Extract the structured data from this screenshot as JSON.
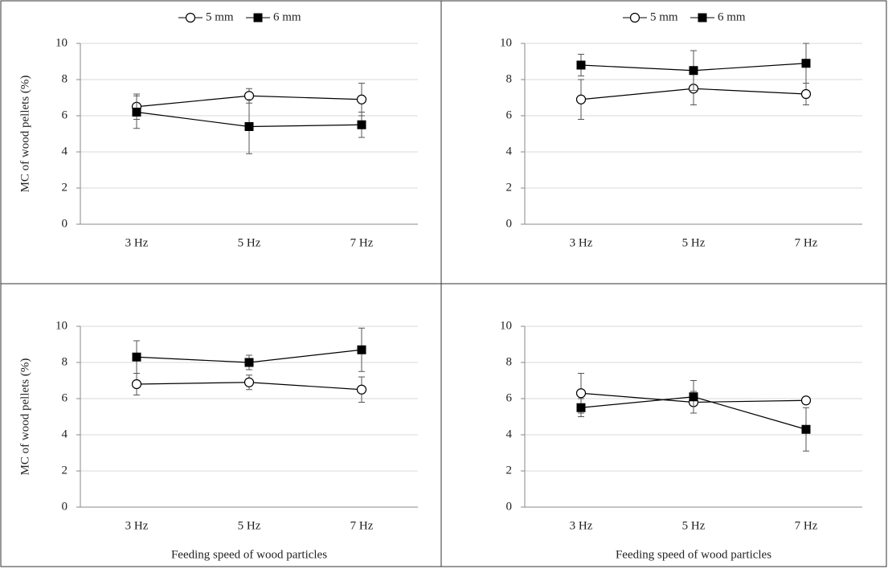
{
  "chart_data": [
    {
      "type": "line",
      "categories": [
        "3 Hz",
        "5 Hz",
        "7 Hz"
      ],
      "ylabel": "MC of wood pellets (%)",
      "ylim": [
        0,
        10
      ],
      "yticks": [
        0,
        2,
        4,
        6,
        8,
        10
      ],
      "grid": true,
      "legend": "top",
      "series": [
        {
          "name": "5 mm",
          "color": "#000000",
          "marker": "circle",
          "values": [
            6.5,
            7.1,
            6.9
          ],
          "errors": [
            0.7,
            0.4,
            0.9
          ]
        },
        {
          "name": "6 mm",
          "color": "#000000",
          "marker": "square",
          "values": [
            6.2,
            5.4,
            5.5
          ],
          "errors": [
            0.9,
            1.5,
            0.7
          ]
        }
      ]
    },
    {
      "type": "line",
      "categories": [
        "3 Hz",
        "5 Hz",
        "7 Hz"
      ],
      "ylim": [
        0,
        10
      ],
      "yticks": [
        0,
        2,
        4,
        6,
        8,
        10
      ],
      "grid": true,
      "legend": "top",
      "series": [
        {
          "name": "5 mm",
          "color": "#000000",
          "marker": "circle",
          "values": [
            6.9,
            7.5,
            7.2
          ],
          "errors": [
            1.1,
            0.9,
            0.6
          ]
        },
        {
          "name": "6 mm",
          "color": "#000000",
          "marker": "square",
          "values": [
            8.8,
            8.5,
            8.9
          ],
          "errors": [
            0.6,
            1.1,
            1.1
          ]
        }
      ]
    },
    {
      "type": "line",
      "categories": [
        "3 Hz",
        "5 Hz",
        "7 Hz"
      ],
      "ylabel": "MC of wood pellets (%)",
      "xlabel": "Feeding  speed of wood particles",
      "ylim": [
        0,
        10
      ],
      "yticks": [
        0,
        2,
        4,
        6,
        8,
        10
      ],
      "grid": true,
      "series": [
        {
          "name": "5 mm",
          "color": "#000000",
          "marker": "circle",
          "values": [
            6.8,
            6.9,
            6.5
          ],
          "errors": [
            0.6,
            0.4,
            0.7
          ]
        },
        {
          "name": "6 mm",
          "color": "#000000",
          "marker": "square",
          "values": [
            8.3,
            8.0,
            8.7
          ],
          "errors": [
            0.9,
            0.4,
            1.2
          ]
        }
      ]
    },
    {
      "type": "line",
      "categories": [
        "3 Hz",
        "5 Hz",
        "7 Hz"
      ],
      "xlabel": "Feeding  speed of wood particles",
      "ylim": [
        0,
        10
      ],
      "yticks": [
        0,
        2,
        4,
        6,
        8,
        10
      ],
      "grid": true,
      "series": [
        {
          "name": "5 mm",
          "color": "#000000",
          "marker": "circle",
          "values": [
            6.3,
            5.8,
            5.9
          ],
          "errors": [
            1.1,
            0.6,
            0.1
          ]
        },
        {
          "name": "6 mm",
          "color": "#000000",
          "marker": "square",
          "values": [
            5.5,
            6.1,
            4.3
          ],
          "errors": [
            0.5,
            0.9,
            1.2
          ]
        }
      ]
    }
  ]
}
